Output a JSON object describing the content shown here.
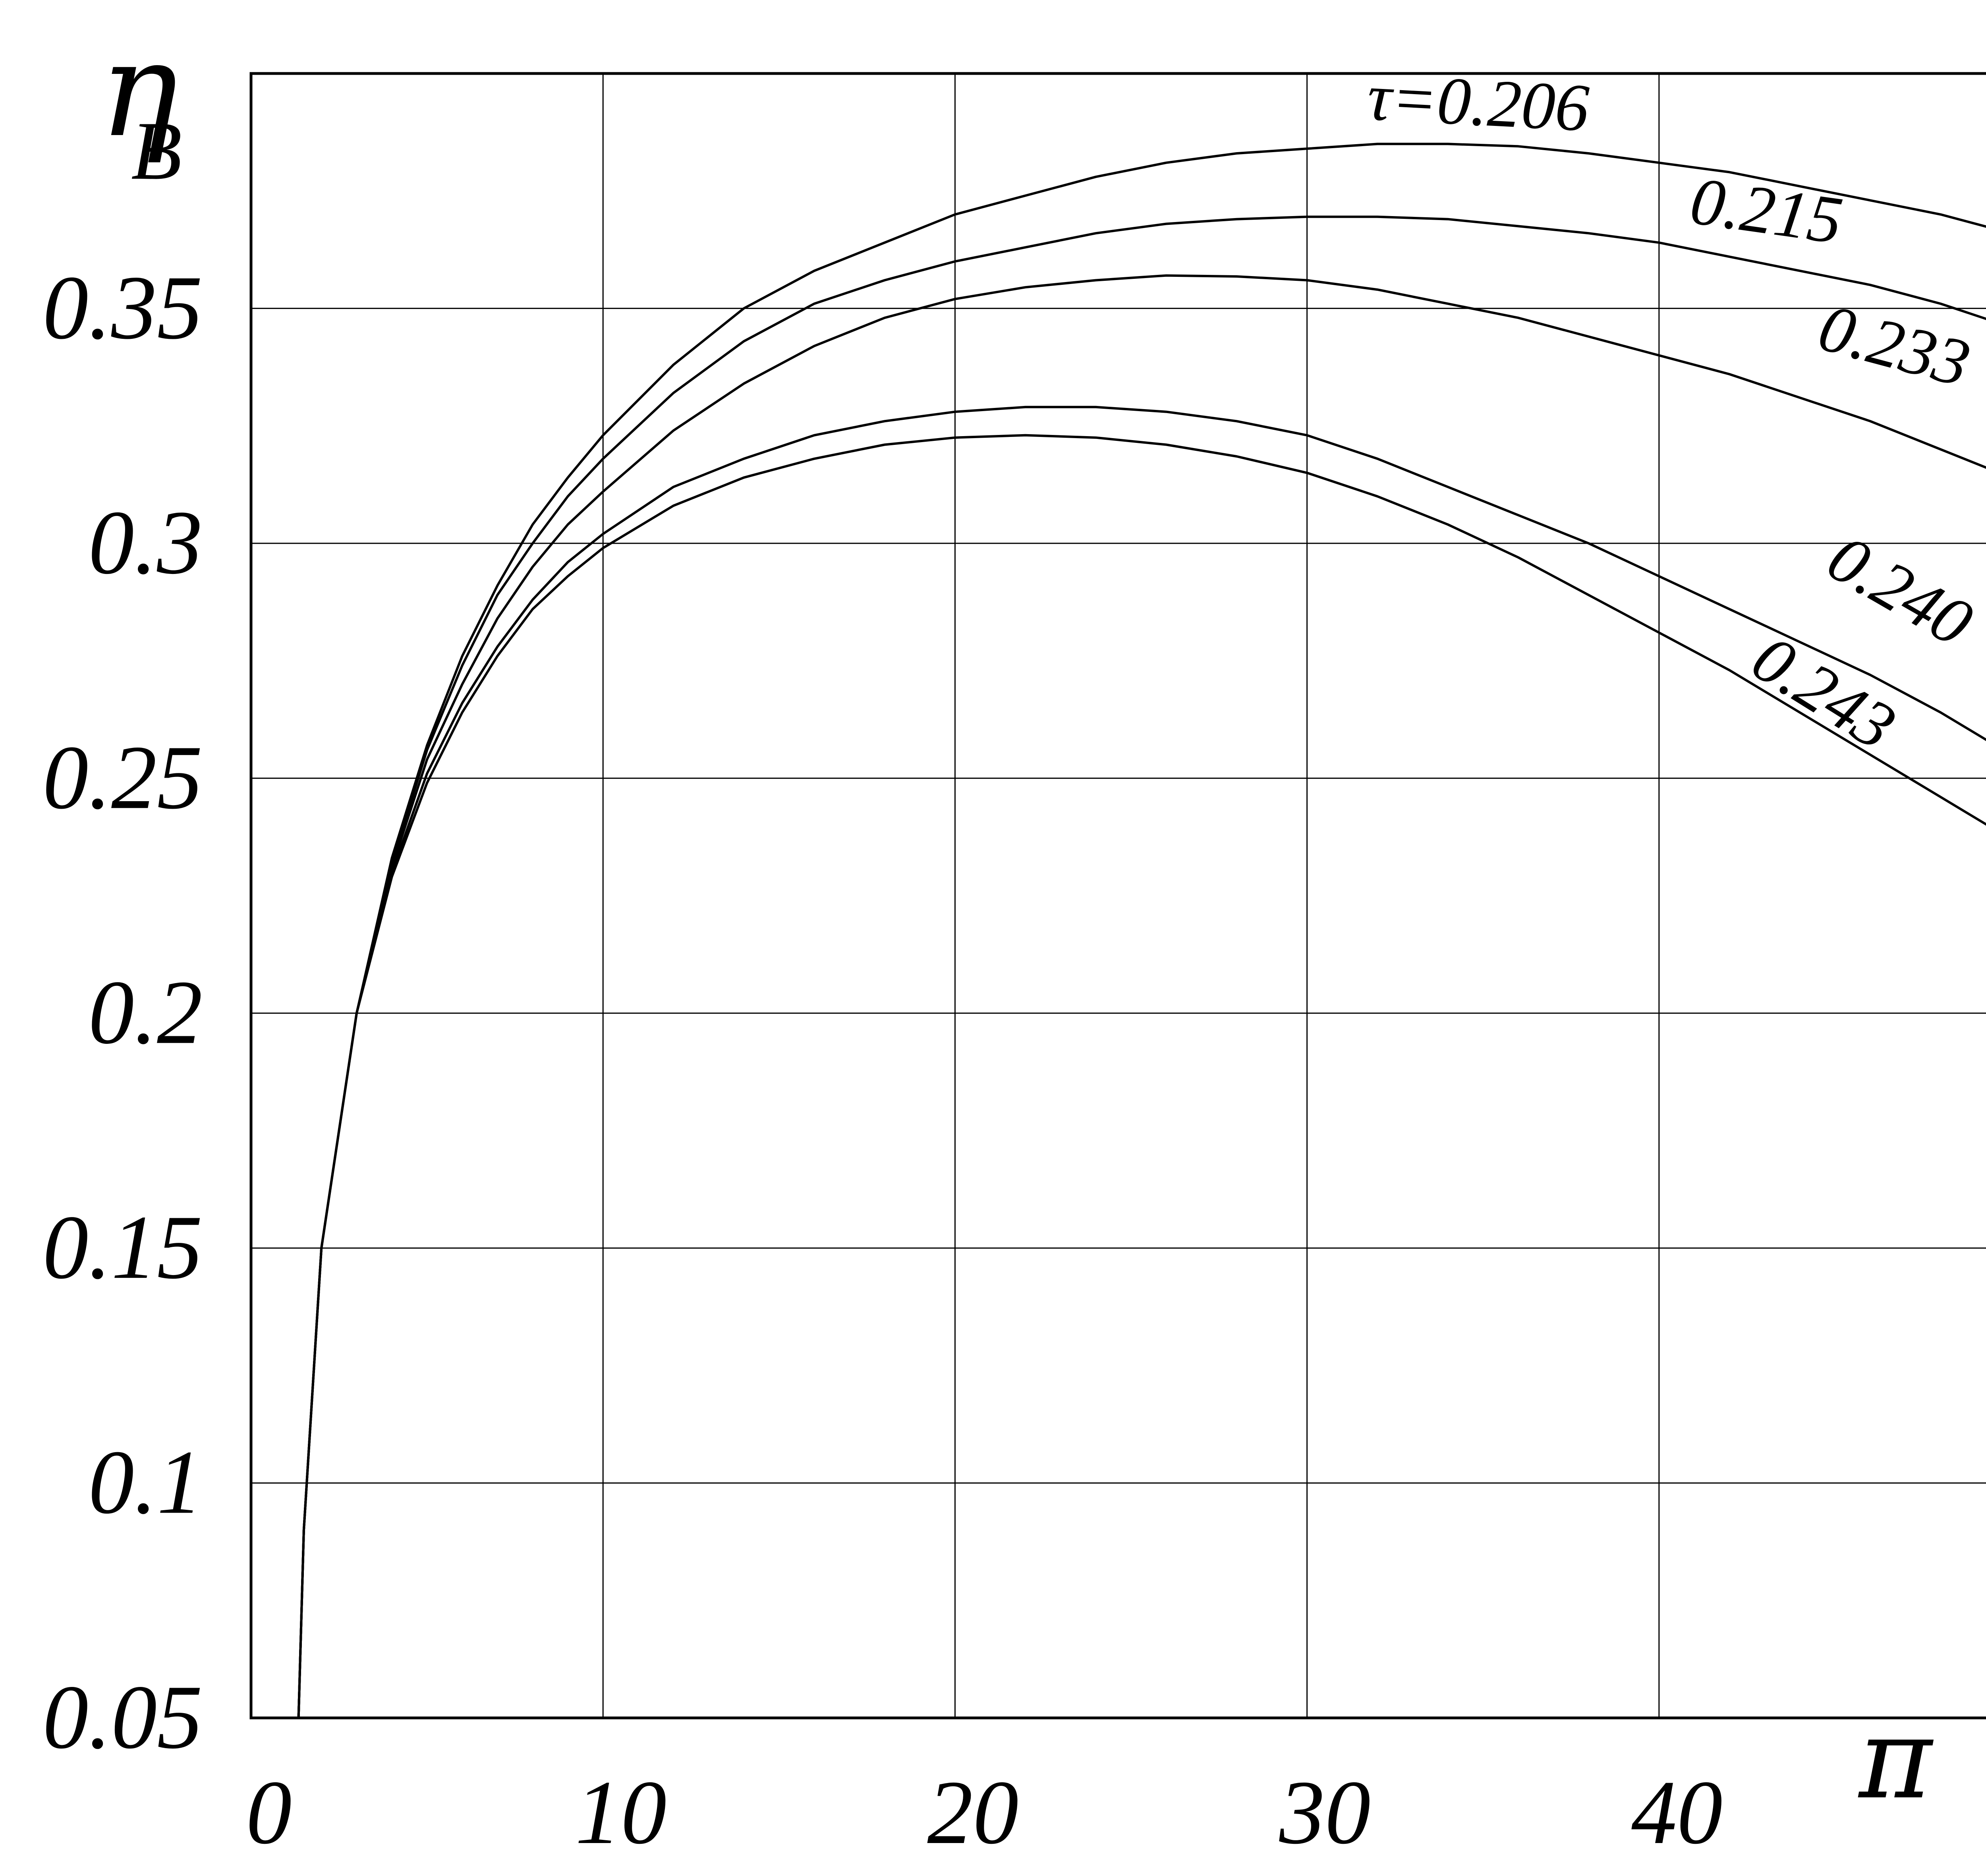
{
  "chart_data": {
    "type": "line",
    "title": "",
    "xlabel": "π",
    "ylabel": {
      "symbol": "η",
      "subscript": "B"
    },
    "xlim": [
      0,
      50
    ],
    "ylim": [
      0.05,
      0.4
    ],
    "grid": true,
    "x_ticks": [
      0,
      10,
      20,
      30,
      40
    ],
    "x_tick_labels": [
      "0",
      "10",
      "20",
      "30",
      "40"
    ],
    "y_ticks": [
      0.05,
      0.1,
      0.15,
      0.2,
      0.25,
      0.3,
      0.35
    ],
    "y_tick_labels": [
      "0.05",
      "0.1",
      "0.15",
      "0.2",
      "0.25",
      "0.3",
      "0.35"
    ],
    "series": [
      {
        "name": "τ=0.206",
        "label": "τ=0.206",
        "x": [
          1.35,
          1.5,
          2,
          3,
          4,
          5,
          6,
          7,
          8,
          9,
          10,
          12,
          14,
          16,
          18,
          20,
          22,
          24,
          26,
          28,
          30,
          32,
          34,
          36,
          38,
          40,
          42,
          44,
          46,
          48,
          50
        ],
        "y": [
          0.05,
          0.09,
          0.15,
          0.2,
          0.233,
          0.257,
          0.276,
          0.291,
          0.304,
          0.314,
          0.323,
          0.338,
          0.35,
          0.358,
          0.364,
          0.37,
          0.374,
          0.378,
          0.381,
          0.383,
          0.384,
          0.385,
          0.385,
          0.3845,
          0.383,
          0.381,
          0.379,
          0.376,
          0.373,
          0.37,
          0.366
        ]
      },
      {
        "name": "0.215",
        "label": "0.215",
        "x": [
          1.35,
          1.5,
          2,
          3,
          4,
          5,
          6,
          7,
          8,
          9,
          10,
          12,
          14,
          16,
          18,
          20,
          22,
          24,
          26,
          28,
          30,
          32,
          34,
          36,
          38,
          40,
          42,
          44,
          46,
          48,
          50
        ],
        "y": [
          0.05,
          0.09,
          0.15,
          0.2,
          0.232,
          0.256,
          0.274,
          0.289,
          0.3,
          0.31,
          0.318,
          0.332,
          0.343,
          0.351,
          0.356,
          0.36,
          0.363,
          0.366,
          0.368,
          0.369,
          0.3695,
          0.3695,
          0.369,
          0.3675,
          0.366,
          0.364,
          0.361,
          0.358,
          0.355,
          0.351,
          0.346
        ]
      },
      {
        "name": "0.233",
        "label": "0.233",
        "x": [
          1.35,
          1.5,
          2,
          3,
          4,
          5,
          6,
          7,
          8,
          9,
          10,
          12,
          14,
          16,
          18,
          20,
          22,
          24,
          26,
          28,
          30,
          32,
          34,
          36,
          38,
          40,
          42,
          44,
          46,
          48,
          50
        ],
        "y": [
          0.05,
          0.09,
          0.15,
          0.2,
          0.231,
          0.254,
          0.27,
          0.284,
          0.295,
          0.304,
          0.311,
          0.324,
          0.334,
          0.342,
          0.348,
          0.352,
          0.3545,
          0.356,
          0.357,
          0.3568,
          0.356,
          0.354,
          0.351,
          0.348,
          0.344,
          0.34,
          0.336,
          0.331,
          0.326,
          0.32,
          0.314
        ]
      },
      {
        "name": "0.240",
        "label": "0.240",
        "x": [
          1.35,
          1.5,
          2,
          3,
          4,
          5,
          6,
          7,
          8,
          9,
          10,
          12,
          14,
          16,
          18,
          20,
          22,
          24,
          26,
          28,
          30,
          32,
          34,
          36,
          38,
          40,
          42,
          44,
          46,
          48,
          50
        ],
        "y": [
          0.05,
          0.09,
          0.15,
          0.2,
          0.23,
          0.251,
          0.266,
          0.278,
          0.288,
          0.296,
          0.302,
          0.312,
          0.318,
          0.323,
          0.326,
          0.328,
          0.329,
          0.329,
          0.328,
          0.326,
          0.323,
          0.318,
          0.312,
          0.306,
          0.3,
          0.293,
          0.286,
          0.279,
          0.272,
          0.264,
          0.255
        ]
      },
      {
        "name": "0.243",
        "label": "0.243",
        "x": [
          1.35,
          1.5,
          2,
          3,
          4,
          5,
          6,
          7,
          8,
          9,
          10,
          12,
          14,
          16,
          18,
          20,
          22,
          24,
          26,
          28,
          30,
          32,
          34,
          36,
          38,
          40,
          42,
          44,
          46,
          48,
          50
        ],
        "y": [
          0.05,
          0.09,
          0.15,
          0.2,
          0.229,
          0.249,
          0.264,
          0.276,
          0.286,
          0.293,
          0.299,
          0.308,
          0.314,
          0.318,
          0.321,
          0.3225,
          0.323,
          0.3225,
          0.321,
          0.3185,
          0.315,
          0.31,
          0.304,
          0.297,
          0.289,
          0.281,
          0.273,
          0.264,
          0.255,
          0.246,
          0.237
        ]
      }
    ]
  }
}
